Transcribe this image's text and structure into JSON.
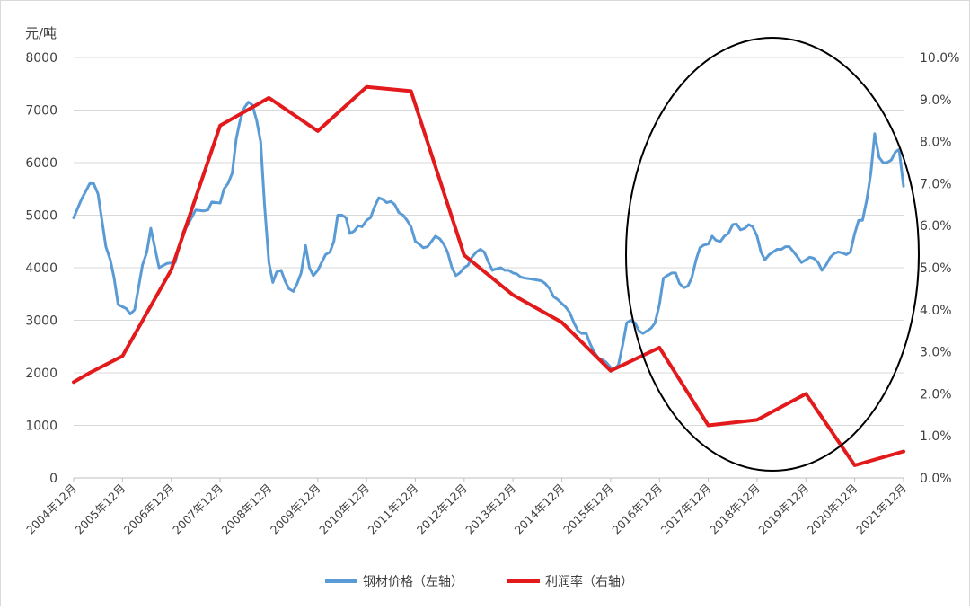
{
  "chart_data": {
    "type": "line",
    "left_unit": "元/吨",
    "x_tick_labels": [
      "2004年12月",
      "2005年12月",
      "2006年12月",
      "2007年12月",
      "2008年12月",
      "2009年12月",
      "2010年12月",
      "2011年12月",
      "2012年12月",
      "2013年12月",
      "2014年12月",
      "2015年12月",
      "2016年12月",
      "2017年12月",
      "2018年12月",
      "2019年12月",
      "2020年12月",
      "2021年12月"
    ],
    "x_range": [
      2004.92,
      2021.92
    ],
    "y_left": {
      "min": 0,
      "max": 8000,
      "ticks": [
        "0",
        "1000",
        "2000",
        "3000",
        "4000",
        "5000",
        "6000",
        "7000",
        "8000"
      ]
    },
    "y_right": {
      "min": 0,
      "max": 10,
      "ticks": [
        "0.0%",
        "1.0%",
        "2.0%",
        "3.0%",
        "4.0%",
        "5.0%",
        "6.0%",
        "7.0%",
        "8.0%",
        "9.0%",
        "10.0%"
      ]
    },
    "grid": "horizontal",
    "legend_position": "bottom",
    "series": [
      {
        "name": "钢材价格（左轴）",
        "axis": "left",
        "color": "#5b9bd5",
        "points": [
          [
            2004.92,
            4950
          ],
          [
            2005.08,
            5300
          ],
          [
            2005.25,
            5600
          ],
          [
            2005.33,
            5600
          ],
          [
            2005.42,
            5400
          ],
          [
            2005.5,
            4900
          ],
          [
            2005.58,
            4400
          ],
          [
            2005.67,
            4150
          ],
          [
            2005.75,
            3800
          ],
          [
            2005.83,
            3300
          ],
          [
            2006.0,
            3220
          ],
          [
            2006.08,
            3120
          ],
          [
            2006.17,
            3200
          ],
          [
            2006.33,
            4050
          ],
          [
            2006.42,
            4300
          ],
          [
            2006.5,
            4750
          ],
          [
            2006.58,
            4400
          ],
          [
            2006.67,
            4000
          ],
          [
            2006.83,
            4080
          ],
          [
            2007.0,
            4100
          ],
          [
            2007.08,
            4400
          ],
          [
            2007.17,
            4700
          ],
          [
            2007.25,
            4800
          ],
          [
            2007.42,
            5100
          ],
          [
            2007.58,
            5080
          ],
          [
            2007.67,
            5100
          ],
          [
            2007.75,
            5250
          ],
          [
            2007.92,
            5230
          ],
          [
            2008.0,
            5500
          ],
          [
            2008.08,
            5600
          ],
          [
            2008.17,
            5800
          ],
          [
            2008.25,
            6450
          ],
          [
            2008.33,
            6800
          ],
          [
            2008.42,
            7050
          ],
          [
            2008.5,
            7150
          ],
          [
            2008.58,
            7100
          ],
          [
            2008.67,
            6800
          ],
          [
            2008.75,
            6400
          ],
          [
            2008.83,
            5200
          ],
          [
            2008.92,
            4100
          ],
          [
            2009.0,
            3720
          ],
          [
            2009.08,
            3920
          ],
          [
            2009.17,
            3950
          ],
          [
            2009.25,
            3750
          ],
          [
            2009.33,
            3600
          ],
          [
            2009.42,
            3550
          ],
          [
            2009.5,
            3700
          ],
          [
            2009.58,
            3900
          ],
          [
            2009.67,
            4420
          ],
          [
            2009.75,
            4000
          ],
          [
            2009.83,
            3850
          ],
          [
            2009.92,
            3950
          ],
          [
            2010.0,
            4100
          ],
          [
            2010.08,
            4250
          ],
          [
            2010.17,
            4300
          ],
          [
            2010.25,
            4500
          ],
          [
            2010.33,
            5000
          ],
          [
            2010.42,
            5000
          ],
          [
            2010.5,
            4950
          ],
          [
            2010.58,
            4650
          ],
          [
            2010.67,
            4700
          ],
          [
            2010.75,
            4800
          ],
          [
            2010.83,
            4780
          ],
          [
            2010.92,
            4900
          ],
          [
            2011.0,
            4950
          ],
          [
            2011.08,
            5150
          ],
          [
            2011.17,
            5330
          ],
          [
            2011.25,
            5300
          ],
          [
            2011.33,
            5240
          ],
          [
            2011.42,
            5260
          ],
          [
            2011.5,
            5200
          ],
          [
            2011.58,
            5050
          ],
          [
            2011.67,
            5000
          ],
          [
            2011.75,
            4900
          ],
          [
            2011.83,
            4780
          ],
          [
            2011.92,
            4500
          ],
          [
            2012.0,
            4450
          ],
          [
            2012.08,
            4380
          ],
          [
            2012.17,
            4400
          ],
          [
            2012.25,
            4500
          ],
          [
            2012.33,
            4600
          ],
          [
            2012.42,
            4550
          ],
          [
            2012.5,
            4450
          ],
          [
            2012.58,
            4300
          ],
          [
            2012.67,
            4000
          ],
          [
            2012.75,
            3850
          ],
          [
            2012.83,
            3900
          ],
          [
            2012.92,
            4000
          ],
          [
            2013.0,
            4050
          ],
          [
            2013.08,
            4200
          ],
          [
            2013.17,
            4300
          ],
          [
            2013.25,
            4350
          ],
          [
            2013.33,
            4300
          ],
          [
            2013.42,
            4100
          ],
          [
            2013.5,
            3950
          ],
          [
            2013.58,
            3980
          ],
          [
            2013.67,
            4000
          ],
          [
            2013.75,
            3950
          ],
          [
            2013.83,
            3950
          ],
          [
            2013.92,
            3900
          ],
          [
            2014.0,
            3880
          ],
          [
            2014.08,
            3820
          ],
          [
            2014.17,
            3800
          ],
          [
            2014.33,
            3780
          ],
          [
            2014.5,
            3750
          ],
          [
            2014.58,
            3700
          ],
          [
            2014.67,
            3600
          ],
          [
            2014.75,
            3450
          ],
          [
            2014.83,
            3400
          ],
          [
            2014.92,
            3320
          ],
          [
            2015.0,
            3250
          ],
          [
            2015.08,
            3150
          ],
          [
            2015.17,
            2950
          ],
          [
            2015.25,
            2800
          ],
          [
            2015.33,
            2750
          ],
          [
            2015.42,
            2750
          ],
          [
            2015.5,
            2550
          ],
          [
            2015.58,
            2400
          ],
          [
            2015.67,
            2280
          ],
          [
            2015.75,
            2250
          ],
          [
            2015.83,
            2200
          ],
          [
            2015.92,
            2100
          ],
          [
            2016.0,
            2080
          ],
          [
            2016.08,
            2150
          ],
          [
            2016.17,
            2550
          ],
          [
            2016.25,
            2950
          ],
          [
            2016.33,
            3000
          ],
          [
            2016.42,
            2950
          ],
          [
            2016.5,
            2800
          ],
          [
            2016.58,
            2750
          ],
          [
            2016.67,
            2800
          ],
          [
            2016.75,
            2850
          ],
          [
            2016.83,
            2950
          ],
          [
            2016.92,
            3300
          ],
          [
            2017.0,
            3800
          ],
          [
            2017.08,
            3850
          ],
          [
            2017.17,
            3900
          ],
          [
            2017.25,
            3900
          ],
          [
            2017.33,
            3700
          ],
          [
            2017.42,
            3620
          ],
          [
            2017.5,
            3650
          ],
          [
            2017.58,
            3800
          ],
          [
            2017.67,
            4150
          ],
          [
            2017.75,
            4380
          ],
          [
            2017.83,
            4430
          ],
          [
            2017.92,
            4450
          ],
          [
            2018.0,
            4600
          ],
          [
            2018.08,
            4520
          ],
          [
            2018.17,
            4500
          ],
          [
            2018.25,
            4600
          ],
          [
            2018.33,
            4650
          ],
          [
            2018.42,
            4820
          ],
          [
            2018.5,
            4830
          ],
          [
            2018.58,
            4720
          ],
          [
            2018.67,
            4750
          ],
          [
            2018.75,
            4820
          ],
          [
            2018.83,
            4780
          ],
          [
            2018.92,
            4600
          ],
          [
            2019.0,
            4300
          ],
          [
            2019.08,
            4150
          ],
          [
            2019.17,
            4250
          ],
          [
            2019.25,
            4300
          ],
          [
            2019.33,
            4350
          ],
          [
            2019.42,
            4350
          ],
          [
            2019.5,
            4400
          ],
          [
            2019.58,
            4400
          ],
          [
            2019.67,
            4300
          ],
          [
            2019.75,
            4200
          ],
          [
            2019.83,
            4100
          ],
          [
            2019.92,
            4150
          ],
          [
            2020.0,
            4200
          ],
          [
            2020.08,
            4180
          ],
          [
            2020.17,
            4100
          ],
          [
            2020.25,
            3950
          ],
          [
            2020.33,
            4050
          ],
          [
            2020.42,
            4200
          ],
          [
            2020.5,
            4270
          ],
          [
            2020.58,
            4300
          ],
          [
            2020.67,
            4280
          ],
          [
            2020.75,
            4250
          ],
          [
            2020.83,
            4300
          ],
          [
            2020.92,
            4650
          ],
          [
            2021.0,
            4900
          ],
          [
            2021.08,
            4900
          ],
          [
            2021.17,
            5300
          ],
          [
            2021.25,
            5800
          ],
          [
            2021.33,
            6550
          ],
          [
            2021.42,
            6100
          ],
          [
            2021.5,
            6000
          ],
          [
            2021.58,
            6000
          ],
          [
            2021.67,
            6050
          ],
          [
            2021.75,
            6200
          ],
          [
            2021.83,
            6250
          ],
          [
            2021.92,
            5550
          ]
        ]
      },
      {
        "name": "利润率（右轴）",
        "axis": "right",
        "color": "#e31a1c",
        "points": [
          [
            2004.92,
            2.28
          ],
          [
            2005.25,
            2.5
          ],
          [
            2005.92,
            2.9
          ],
          [
            2006.92,
            4.95
          ],
          [
            2007.92,
            8.38
          ],
          [
            2008.92,
            9.04
          ],
          [
            2009.92,
            8.25
          ],
          [
            2010.92,
            9.3
          ],
          [
            2011.83,
            9.2
          ],
          [
            2012.92,
            5.3
          ],
          [
            2013.92,
            4.35
          ],
          [
            2014.92,
            3.7
          ],
          [
            2015.92,
            2.55
          ],
          [
            2016.92,
            3.1
          ],
          [
            2017.92,
            1.25
          ],
          [
            2018.92,
            1.38
          ],
          [
            2019.92,
            2.0
          ],
          [
            2020.92,
            0.3
          ],
          [
            2021.92,
            0.63
          ]
        ]
      }
    ]
  }
}
